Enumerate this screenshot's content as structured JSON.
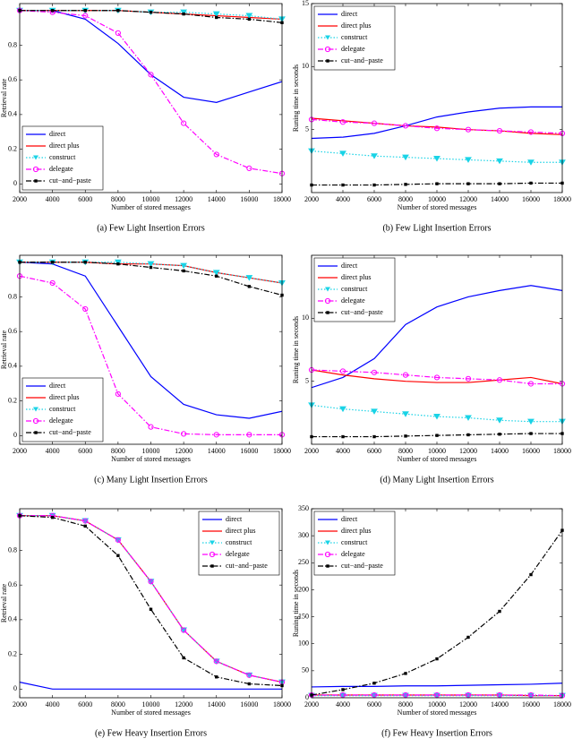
{
  "chart_data": [
    {
      "type": "line",
      "caption": "(a) Few Light Insertion Errors",
      "xlabel": "Number of stored messages",
      "ylabel": "Retrieval rate",
      "x": [
        2000,
        4000,
        6000,
        8000,
        10000,
        12000,
        14000,
        16000,
        18000
      ],
      "xlim": [
        2000,
        18000
      ],
      "xticks": [
        2000,
        4000,
        6000,
        8000,
        10000,
        12000,
        14000,
        16000,
        18000
      ],
      "ylim": [
        -0.05,
        1.04
      ],
      "yticks": [
        0,
        0.2,
        0.4,
        0.6,
        0.8
      ],
      "grid": false,
      "legend": "lower left",
      "series": [
        {
          "name": "direct",
          "color": "#0000ff",
          "dash": "solid",
          "marker": "none",
          "values": [
            1,
            1,
            0.95,
            0.81,
            0.63,
            0.5,
            0.47,
            0.53,
            0.59
          ]
        },
        {
          "name": "direct plus",
          "color": "#ff0000",
          "dash": "solid",
          "marker": "none",
          "values": [
            1,
            1,
            1,
            1,
            0.99,
            0.98,
            0.97,
            0.96,
            0.95
          ]
        },
        {
          "name": "construct",
          "color": "#19d3e6",
          "dash": "dotted",
          "marker": "triangle",
          "values": [
            1,
            1,
            1,
            1,
            0.99,
            0.99,
            0.98,
            0.97,
            0.95
          ]
        },
        {
          "name": "delegate",
          "color": "#ff00ff",
          "dash": "dashdot",
          "marker": "circle",
          "values": [
            1,
            0.99,
            0.97,
            0.87,
            0.63,
            0.35,
            0.17,
            0.09,
            0.06
          ]
        },
        {
          "name": "cut−and−paste",
          "color": "#000000",
          "dash": "dashdot",
          "marker": "square",
          "values": [
            1,
            1,
            1,
            1,
            0.99,
            0.98,
            0.96,
            0.95,
            0.93
          ]
        }
      ]
    },
    {
      "type": "line",
      "caption": "(b) Few Light Insertion Errors",
      "xlabel": "Number of stored messages",
      "ylabel": "Runing time in seconds",
      "x": [
        2000,
        4000,
        6000,
        8000,
        10000,
        12000,
        14000,
        16000,
        18000
      ],
      "xlim": [
        2000,
        18000
      ],
      "xticks": [
        2000,
        4000,
        6000,
        8000,
        10000,
        12000,
        14000,
        16000,
        18000
      ],
      "ylim": [
        0,
        15
      ],
      "yticks": [
        5,
        10,
        15
      ],
      "grid": false,
      "legend": "upper left",
      "series": [
        {
          "name": "direct",
          "color": "#0000ff",
          "dash": "solid",
          "marker": "none",
          "values": [
            4.3,
            4.4,
            4.7,
            5.3,
            6,
            6.4,
            6.7,
            6.8,
            6.8
          ]
        },
        {
          "name": "direct plus",
          "color": "#ff0000",
          "dash": "solid",
          "marker": "none",
          "values": [
            5.9,
            5.7,
            5.5,
            5.3,
            5.2,
            5,
            4.9,
            4.7,
            4.6
          ]
        },
        {
          "name": "construct",
          "color": "#19d3e6",
          "dash": "dotted",
          "marker": "triangle",
          "values": [
            3.3,
            3.1,
            2.9,
            2.8,
            2.7,
            2.6,
            2.5,
            2.4,
            2.4
          ]
        },
        {
          "name": "delegate",
          "color": "#ff00ff",
          "dash": "dashdot",
          "marker": "circle",
          "values": [
            5.8,
            5.6,
            5.5,
            5.3,
            5.1,
            5,
            4.9,
            4.8,
            4.7
          ]
        },
        {
          "name": "cut−and−paste",
          "color": "#000000",
          "dash": "dashdot",
          "marker": "square",
          "values": [
            0.6,
            0.6,
            0.6,
            0.65,
            0.7,
            0.7,
            0.7,
            0.75,
            0.75
          ]
        }
      ]
    },
    {
      "type": "line",
      "caption": "(c) Many Light Insertion Errors",
      "xlabel": "Number of stored messages",
      "ylabel": "Retrieval rate",
      "x": [
        2000,
        4000,
        6000,
        8000,
        10000,
        12000,
        14000,
        16000,
        18000
      ],
      "xlim": [
        2000,
        18000
      ],
      "xticks": [
        2000,
        4000,
        6000,
        8000,
        10000,
        12000,
        14000,
        16000,
        18000
      ],
      "ylim": [
        -0.05,
        1.04
      ],
      "yticks": [
        0,
        0.2,
        0.4,
        0.6,
        0.8
      ],
      "grid": false,
      "legend": "lower left",
      "series": [
        {
          "name": "direct",
          "color": "#0000ff",
          "dash": "solid",
          "marker": "none",
          "values": [
            1,
            0.99,
            0.92,
            0.63,
            0.34,
            0.18,
            0.12,
            0.1,
            0.14
          ]
        },
        {
          "name": "direct plus",
          "color": "#ff0000",
          "dash": "solid",
          "marker": "none",
          "values": [
            1,
            1,
            1,
            0.99,
            0.99,
            0.98,
            0.94,
            0.91,
            0.88
          ]
        },
        {
          "name": "construct",
          "color": "#19d3e6",
          "dash": "dotted",
          "marker": "triangle",
          "values": [
            1,
            1,
            1,
            1,
            0.99,
            0.98,
            0.94,
            0.91,
            0.88
          ]
        },
        {
          "name": "delegate",
          "color": "#ff00ff",
          "dash": "dashdot",
          "marker": "circle",
          "values": [
            0.92,
            0.88,
            0.73,
            0.24,
            0.05,
            0.01,
            0.005,
            0.005,
            0.005
          ]
        },
        {
          "name": "cut−and−paste",
          "color": "#000000",
          "dash": "dashdot",
          "marker": "square",
          "values": [
            1,
            1,
            1,
            0.99,
            0.97,
            0.95,
            0.92,
            0.86,
            0.81
          ]
        }
      ]
    },
    {
      "type": "line",
      "caption": "(d) Many Light Insertion Errors",
      "xlabel": "Number of stored messages",
      "ylabel": "Runing time in seconds",
      "x": [
        2000,
        4000,
        6000,
        8000,
        10000,
        12000,
        14000,
        16000,
        18000
      ],
      "xlim": [
        2000,
        18000
      ],
      "xticks": [
        2000,
        4000,
        6000,
        8000,
        10000,
        12000,
        14000,
        16000,
        18000
      ],
      "ylim": [
        0,
        15
      ],
      "yticks": [
        5,
        10
      ],
      "grid": false,
      "legend": "upper left",
      "series": [
        {
          "name": "direct",
          "color": "#0000ff",
          "dash": "solid",
          "marker": "none",
          "values": [
            4.5,
            5.3,
            6.8,
            9.5,
            10.9,
            11.7,
            12.2,
            12.6,
            12.2
          ]
        },
        {
          "name": "direct plus",
          "color": "#ff0000",
          "dash": "solid",
          "marker": "none",
          "values": [
            5.9,
            5.5,
            5.2,
            5,
            4.9,
            4.9,
            5.1,
            5.3,
            4.8
          ]
        },
        {
          "name": "construct",
          "color": "#19d3e6",
          "dash": "dotted",
          "marker": "triangle",
          "values": [
            3.1,
            2.8,
            2.6,
            2.4,
            2.2,
            2.1,
            1.9,
            1.8,
            1.8
          ]
        },
        {
          "name": "delegate",
          "color": "#ff00ff",
          "dash": "dashdot",
          "marker": "circle",
          "values": [
            5.9,
            5.8,
            5.7,
            5.5,
            5.3,
            5.2,
            5.1,
            4.8,
            4.8
          ]
        },
        {
          "name": "cut−and−paste",
          "color": "#000000",
          "dash": "dashdot",
          "marker": "square",
          "values": [
            0.6,
            0.6,
            0.6,
            0.65,
            0.7,
            0.75,
            0.8,
            0.85,
            0.85
          ]
        }
      ]
    },
    {
      "type": "line",
      "caption": "(e) Few Heavy Insertion Errors",
      "xlabel": "Number of stored messages",
      "ylabel": "Retrieval rate",
      "x": [
        2000,
        4000,
        6000,
        8000,
        10000,
        12000,
        14000,
        16000,
        18000
      ],
      "xlim": [
        2000,
        18000
      ],
      "xticks": [
        2000,
        4000,
        6000,
        8000,
        10000,
        12000,
        14000,
        16000,
        18000
      ],
      "ylim": [
        -0.05,
        1.04
      ],
      "yticks": [
        0,
        0.2,
        0.4,
        0.6,
        0.8
      ],
      "grid": false,
      "legend": "upper right",
      "series": [
        {
          "name": "direct",
          "color": "#0000ff",
          "dash": "solid",
          "marker": "none",
          "values": [
            0.04,
            0,
            0,
            0,
            0,
            0,
            0,
            0,
            0
          ]
        },
        {
          "name": "direct plus",
          "color": "#ff0000",
          "dash": "solid",
          "marker": "none",
          "values": [
            1,
            1,
            0.97,
            0.86,
            0.62,
            0.34,
            0.16,
            0.08,
            0.04
          ]
        },
        {
          "name": "construct",
          "color": "#19d3e6",
          "dash": "dotted",
          "marker": "triangle",
          "values": [
            1,
            1,
            0.97,
            0.86,
            0.62,
            0.34,
            0.16,
            0.08,
            0.04
          ]
        },
        {
          "name": "delegate",
          "color": "#ff00ff",
          "dash": "dashdot",
          "marker": "circle",
          "values": [
            1,
            1,
            0.97,
            0.86,
            0.62,
            0.34,
            0.16,
            0.08,
            0.04
          ]
        },
        {
          "name": "cut−and−paste",
          "color": "#000000",
          "dash": "dashdot",
          "marker": "square",
          "values": [
            1,
            0.99,
            0.94,
            0.77,
            0.46,
            0.18,
            0.07,
            0.03,
            0.02
          ]
        }
      ]
    },
    {
      "type": "line",
      "caption": "(f) Few Heavy Insertion Errors",
      "xlabel": "Number of stored messages",
      "ylabel": "Runing time in seconds",
      "x": [
        2000,
        4000,
        6000,
        8000,
        10000,
        12000,
        14000,
        16000,
        18000
      ],
      "xlim": [
        2000,
        18000
      ],
      "xticks": [
        2000,
        4000,
        6000,
        8000,
        10000,
        12000,
        14000,
        16000,
        18000
      ],
      "ylim": [
        0,
        350
      ],
      "yticks": [
        0,
        50,
        100,
        150,
        200,
        250,
        300,
        350
      ],
      "grid": false,
      "legend": "upper left",
      "series": [
        {
          "name": "direct",
          "color": "#0000ff",
          "dash": "solid",
          "marker": "none",
          "values": [
            20,
            21,
            21,
            22,
            22,
            23,
            24,
            25,
            27
          ]
        },
        {
          "name": "direct plus",
          "color": "#ff0000",
          "dash": "solid",
          "marker": "none",
          "values": [
            5,
            5,
            5,
            5,
            5,
            5,
            5,
            4,
            4
          ]
        },
        {
          "name": "construct",
          "color": "#19d3e6",
          "dash": "dotted",
          "marker": "triangle",
          "values": [
            4,
            4,
            4,
            4,
            4,
            4,
            4,
            4,
            4
          ]
        },
        {
          "name": "delegate",
          "color": "#ff00ff",
          "dash": "dashdot",
          "marker": "circle",
          "values": [
            5,
            5,
            5,
            5,
            5,
            5,
            5,
            5,
            4
          ]
        },
        {
          "name": "cut−and−paste",
          "color": "#000000",
          "dash": "dashdot",
          "marker": "square",
          "values": [
            5,
            15,
            27,
            45,
            72,
            112,
            160,
            228,
            310
          ]
        }
      ]
    }
  ]
}
